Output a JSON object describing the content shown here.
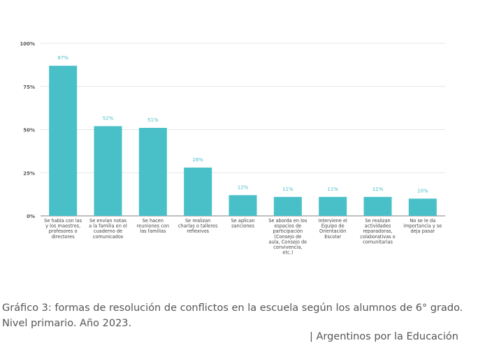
{
  "chart_data": {
    "type": "bar",
    "categories": [
      [
        "Se habla con las",
        "y los maestros,",
        "profesores o",
        "directores"
      ],
      [
        "Se envían notas",
        "a la familia en el",
        "cuaderno de",
        "comunicados"
      ],
      [
        "Se hacen",
        "reuniones con",
        "las familias"
      ],
      [
        "Se realizan",
        "charlas o talleres",
        "reflexivos"
      ],
      [
        "Se aplican",
        "sanciones"
      ],
      [
        "Se aborda en los",
        "espacios de",
        "participación",
        "(Consejo de",
        "aula, Consejo de",
        "convivencia,",
        "etc.)"
      ],
      [
        "Interviene el",
        "Equipo de",
        "Orientación",
        "Escolar"
      ],
      [
        "Se realizan",
        "actividades",
        "reparadoras,",
        "colaborativas o",
        "comunitarias"
      ],
      [
        "No se le da",
        "importancia y se",
        "deja pasar"
      ]
    ],
    "values": [
      87,
      52,
      51,
      28,
      12,
      11,
      11,
      11,
      10
    ],
    "data_labels": [
      "87%",
      "52%",
      "51%",
      "28%",
      "12%",
      "11%",
      "11%",
      "11%",
      "10%"
    ],
    "yticks": [
      0,
      25,
      50,
      75,
      100
    ],
    "ytick_labels": [
      "0%",
      "25%",
      "50%",
      "75%",
      "100%"
    ],
    "ylim": [
      0,
      100
    ],
    "grid": true,
    "colors": {
      "bar": "#49bfc8",
      "label": "#49bfc8",
      "grid": "#e6e6e6"
    }
  },
  "caption": "Gráfico 3: formas de resolución de conflictos en la escuela según los alumnos de 6° grado. Nivel primario. Año 2023.",
  "source": "| Argentinos por la Educación"
}
